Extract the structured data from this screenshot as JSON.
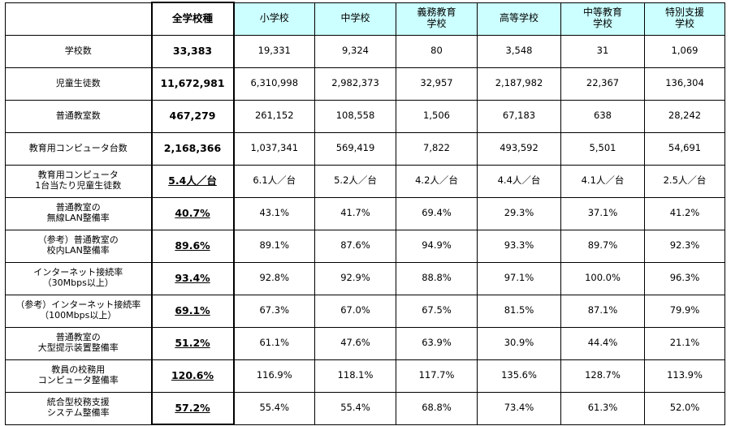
{
  "table": {
    "headers": [
      "全学校種",
      "小学校",
      "中学校",
      "義務教育\n学校",
      "高等学校",
      "中等教育\n学校",
      "特別支援\n学校"
    ],
    "rows": [
      {
        "label": "学校数",
        "values": [
          "33,383",
          "19,331",
          "9,324",
          "80",
          "3,548",
          "31",
          "1,069"
        ],
        "underline": false
      },
      {
        "label": "児童生徒数",
        "values": [
          "11,672,981",
          "6,310,998",
          "2,982,373",
          "32,957",
          "2,187,982",
          "22,367",
          "136,304"
        ],
        "underline": false
      },
      {
        "label": "普通教室数",
        "values": [
          "467,279",
          "261,152",
          "108,558",
          "1,506",
          "67,183",
          "638",
          "28,242"
        ],
        "underline": false
      },
      {
        "label": "教育用コンピュータ台数",
        "values": [
          "2,168,366",
          "1,037,341",
          "569,419",
          "7,822",
          "493,592",
          "5,501",
          "54,691"
        ],
        "underline": false
      },
      {
        "label": "教育用コンピュータ\n1台当たり児童生徒数",
        "values": [
          "5.4人／台",
          "6.1人／台",
          "5.2人／台",
          "4.2人／台",
          "4.4人／台",
          "4.1人／台",
          "2.5人／台"
        ],
        "underline": true
      },
      {
        "label": "普通教室の\n無線LAN整備率",
        "values": [
          "40.7%",
          "43.1%",
          "41.7%",
          "69.4%",
          "29.3%",
          "37.1%",
          "41.2%"
        ],
        "underline": true
      },
      {
        "label": "（参考）普通教室の\n校内LAN整備率",
        "values": [
          "89.6%",
          "89.1%",
          "87.6%",
          "94.9%",
          "93.3%",
          "89.7%",
          "92.3%"
        ],
        "underline": true
      },
      {
        "label": "インターネット接続率\n（30Mbps以上）",
        "values": [
          "93.4%",
          "92.8%",
          "92.9%",
          "88.8%",
          "97.1%",
          "100.0%",
          "96.3%"
        ],
        "underline": true
      },
      {
        "label": "（参考）インターネット接続率\n（100Mbps以上）",
        "values": [
          "69.1%",
          "67.3%",
          "67.0%",
          "67.5%",
          "81.5%",
          "87.1%",
          "79.9%"
        ],
        "underline": true
      },
      {
        "label": "普通教室の\n大型提示装置整備率",
        "values": [
          "51.2%",
          "61.1%",
          "47.6%",
          "63.9%",
          "30.9%",
          "44.4%",
          "21.1%"
        ],
        "underline": true
      },
      {
        "label": "教員の校務用\nコンピュータ整備率",
        "values": [
          "120.6%",
          "116.9%",
          "118.1%",
          "117.7%",
          "135.6%",
          "128.7%",
          "113.9%"
        ],
        "underline": true
      },
      {
        "label": "統合型校務支援\nシステム整備率",
        "values": [
          "57.2%",
          "55.4%",
          "55.4%",
          "68.8%",
          "73.4%",
          "61.3%",
          "52.0%"
        ],
        "underline": true
      }
    ]
  },
  "colors": {
    "header_bg": "#ccffff",
    "border": "#000000"
  }
}
